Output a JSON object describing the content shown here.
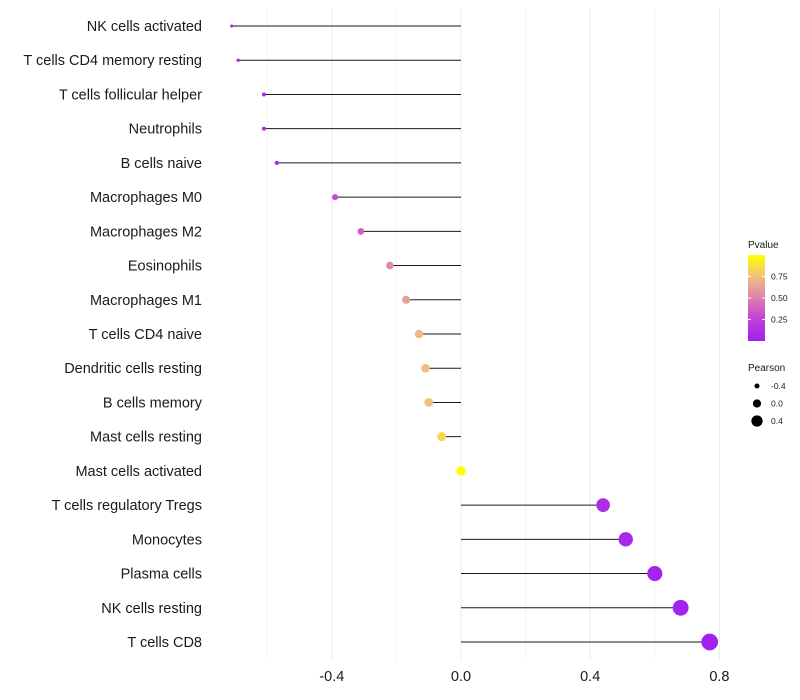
{
  "chart_data": {
    "type": "lollipop",
    "title": "",
    "xlabel": "",
    "ylabel": "",
    "xlim": [
      -0.72,
      0.8
    ],
    "x_ticks": [
      -0.4,
      0.0,
      0.4,
      0.8
    ],
    "x_tick_labels": [
      "-0.4",
      "0.0",
      "0.4",
      "0.8"
    ],
    "grid": true,
    "categories": [
      "NK cells activated",
      "T cells CD4 memory resting",
      "T cells follicular helper",
      "Neutrophils",
      "B cells naive",
      "Macrophages M0",
      "Macrophages M2",
      "Eosinophils",
      "Macrophages M1",
      "T cells CD4 naive",
      "Dendritic cells resting",
      "B cells memory",
      "Mast cells resting",
      "Mast cells activated",
      "T cells regulatory  Tregs ",
      "Monocytes",
      "Plasma cells",
      "NK cells resting",
      "T cells CD8"
    ],
    "pearson": [
      -0.71,
      -0.69,
      -0.61,
      -0.61,
      -0.57,
      -0.39,
      -0.31,
      -0.22,
      -0.17,
      -0.13,
      -0.11,
      -0.1,
      -0.06,
      0.0,
      0.44,
      0.51,
      0.6,
      0.68,
      0.77
    ],
    "pvalue": [
      0.02,
      0.03,
      0.08,
      0.08,
      0.1,
      0.28,
      0.38,
      0.55,
      0.63,
      0.72,
      0.74,
      0.75,
      0.84,
      1.0,
      0.1,
      0.06,
      0.03,
      0.02,
      0.01
    ],
    "legend": {
      "color": {
        "title": "Pvalue",
        "ticks": [
          0.25,
          0.5,
          0.75
        ],
        "tick_labels": [
          "0.25",
          "0.50",
          "0.75"
        ],
        "low_color": "#a020f0",
        "high_color": "#ffff00",
        "range": [
          0.0,
          1.0
        ]
      },
      "size": {
        "title": "Pearson",
        "values": [
          -0.4,
          0.0,
          0.4
        ],
        "labels": [
          "-0.4",
          "0.0",
          "0.4"
        ]
      },
      "placement": "right"
    }
  }
}
